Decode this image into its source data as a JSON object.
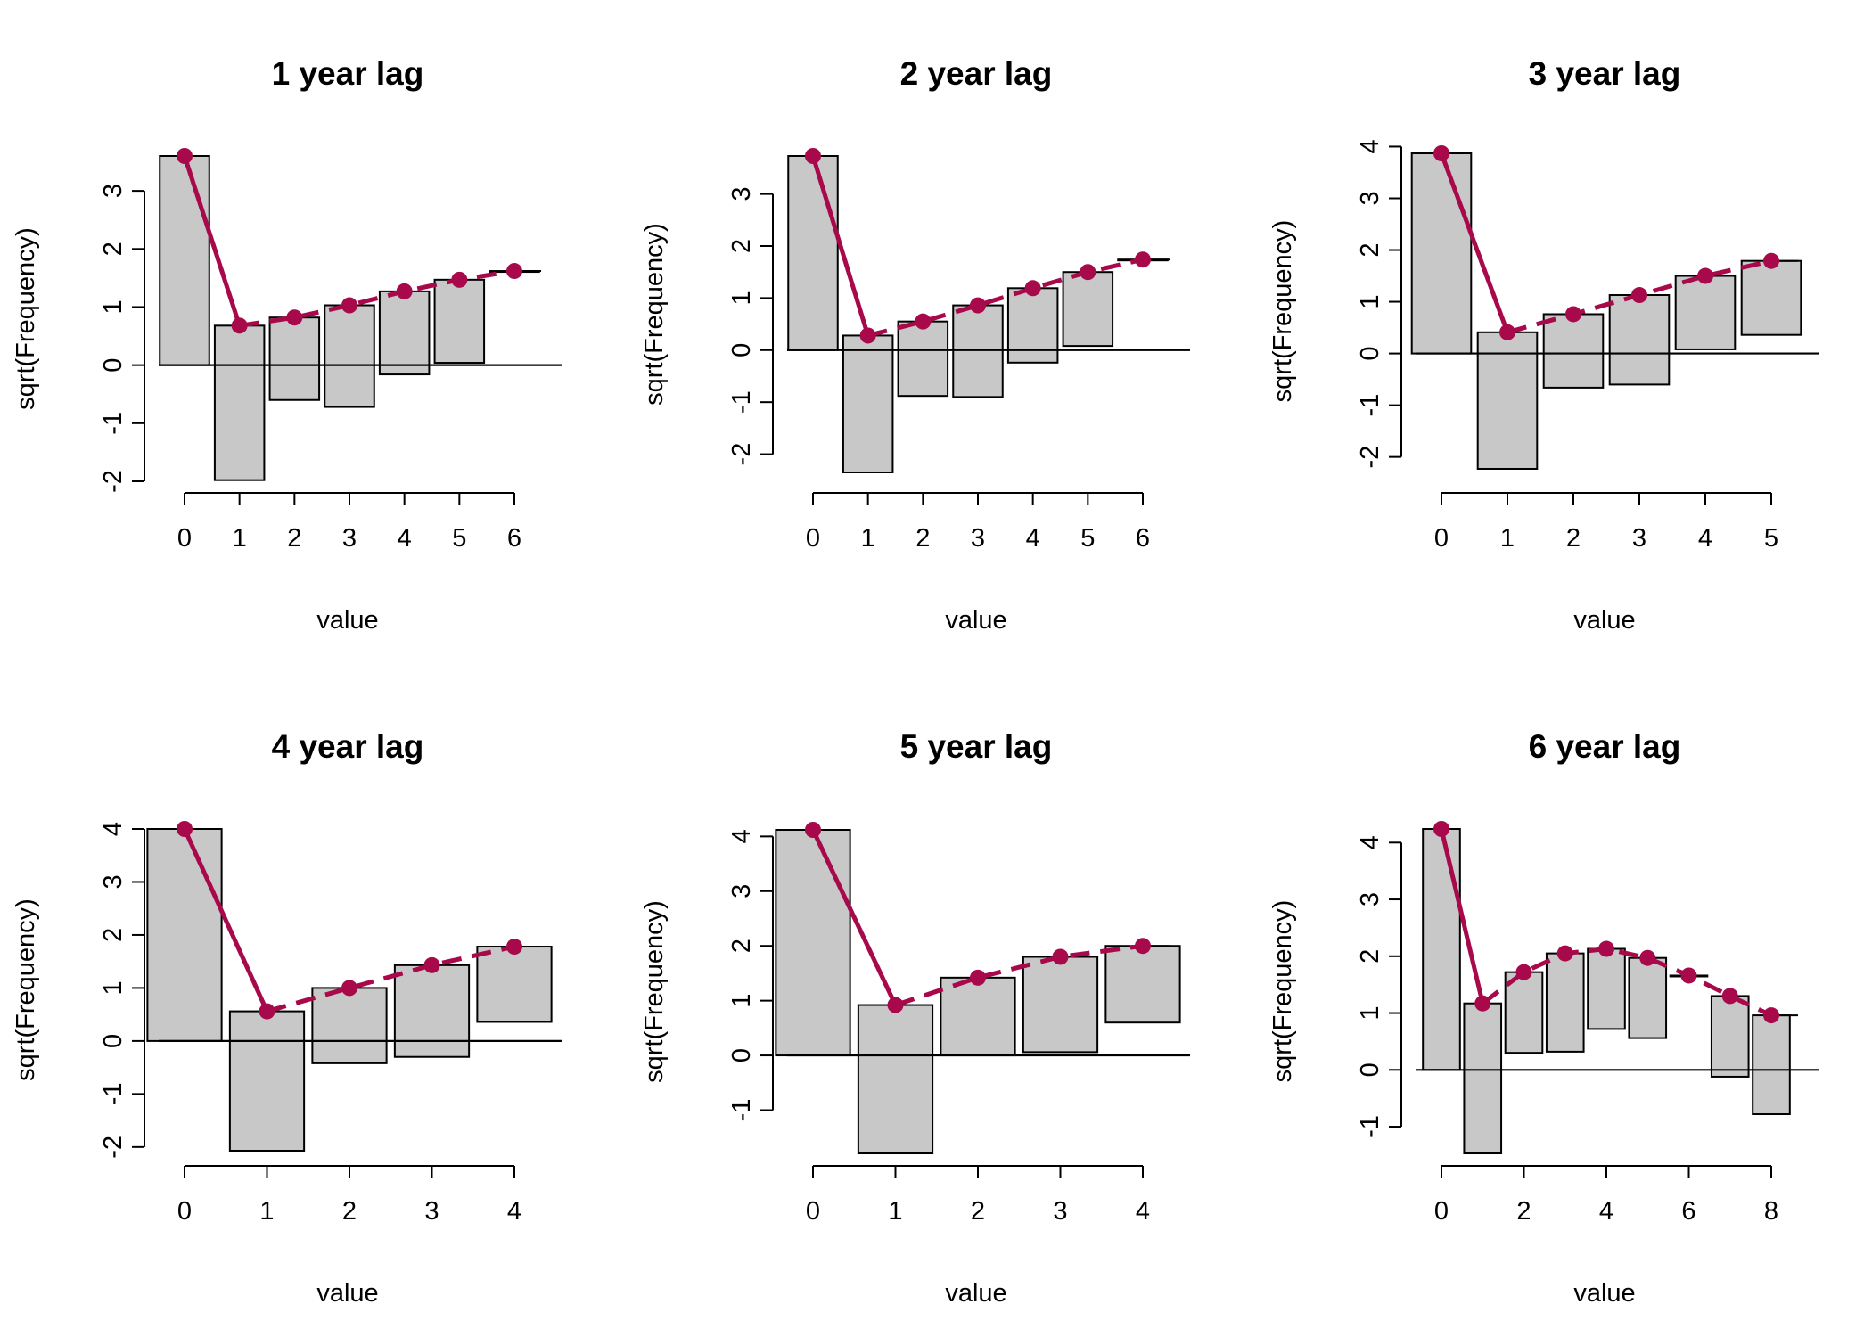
{
  "colors": {
    "bar_fill": "#c8c8c8",
    "bar_stroke": "#000000",
    "line": "#a8094a",
    "axis": "#000000"
  },
  "chart_data": [
    {
      "type": "bar",
      "title": "1 year lag",
      "xlabel": "value",
      "ylabel": "sqrt(Frequency)",
      "x": [
        0,
        1,
        2,
        3,
        4,
        5,
        6
      ],
      "xticks": [
        "0",
        "1",
        "2",
        "3",
        "4",
        "5",
        "6"
      ],
      "yticks": [
        "-2",
        "-1",
        "0",
        "1",
        "2",
        "3"
      ],
      "xlim": [
        -0.5,
        6.5
      ],
      "ylim": [
        -2.0,
        3.6
      ],
      "bars": [
        {
          "x": 0,
          "top": 3.6,
          "bottom": 0.0
        },
        {
          "x": 1,
          "top": 0.68,
          "bottom": -1.98
        },
        {
          "x": 2,
          "top": 0.82,
          "bottom": -0.6
        },
        {
          "x": 3,
          "top": 1.03,
          "bottom": -0.72
        },
        {
          "x": 4,
          "top": 1.27,
          "bottom": -0.16
        },
        {
          "x": 5,
          "top": 1.47,
          "bottom": 0.04
        },
        {
          "x": 6,
          "top": 1.62,
          "bottom": 1.62
        }
      ],
      "fitted": [
        3.6,
        0.68,
        0.82,
        1.03,
        1.27,
        1.47,
        1.62
      ]
    },
    {
      "type": "bar",
      "title": "2 year lag",
      "xlabel": "value",
      "ylabel": "sqrt(Frequency)",
      "x": [
        0,
        1,
        2,
        3,
        4,
        5,
        6
      ],
      "xticks": [
        "0",
        "1",
        "2",
        "3",
        "4",
        "5",
        "6"
      ],
      "yticks": [
        "-2",
        "-1",
        "0",
        "1",
        "2",
        "3"
      ],
      "xlim": [
        -0.5,
        6.5
      ],
      "ylim": [
        -2.35,
        3.73
      ],
      "bars": [
        {
          "x": 0,
          "top": 3.73,
          "bottom": 0.0
        },
        {
          "x": 1,
          "top": 0.28,
          "bottom": -2.35
        },
        {
          "x": 2,
          "top": 0.55,
          "bottom": -0.88
        },
        {
          "x": 3,
          "top": 0.86,
          "bottom": -0.9
        },
        {
          "x": 4,
          "top": 1.19,
          "bottom": -0.24
        },
        {
          "x": 5,
          "top": 1.5,
          "bottom": 0.08
        },
        {
          "x": 6,
          "top": 1.74,
          "bottom": 1.74
        }
      ],
      "fitted": [
        3.73,
        0.28,
        0.55,
        0.86,
        1.19,
        1.5,
        1.74
      ]
    },
    {
      "type": "bar",
      "title": "3 year lag",
      "xlabel": "value",
      "ylabel": "sqrt(Frequency)",
      "x": [
        0,
        1,
        2,
        3,
        4,
        5
      ],
      "xticks": [
        "0",
        "1",
        "2",
        "3",
        "4",
        "5"
      ],
      "yticks": [
        "-2",
        "-1",
        "0",
        "1",
        "2",
        "3",
        "4"
      ],
      "xlim": [
        -0.5,
        5.5
      ],
      "ylim": [
        -2.23,
        3.87
      ],
      "bars": [
        {
          "x": 0,
          "top": 3.87,
          "bottom": 0.0
        },
        {
          "x": 1,
          "top": 0.41,
          "bottom": -2.23
        },
        {
          "x": 2,
          "top": 0.76,
          "bottom": -0.66
        },
        {
          "x": 3,
          "top": 1.13,
          "bottom": -0.6
        },
        {
          "x": 4,
          "top": 1.5,
          "bottom": 0.08
        },
        {
          "x": 5,
          "top": 1.79,
          "bottom": 0.36
        }
      ],
      "fitted": [
        3.87,
        0.41,
        0.76,
        1.13,
        1.5,
        1.79
      ]
    },
    {
      "type": "bar",
      "title": "4 year lag",
      "xlabel": "value",
      "ylabel": "sqrt(Frequency)",
      "x": [
        0,
        1,
        2,
        3,
        4
      ],
      "xticks": [
        "0",
        "1",
        "2",
        "3",
        "4"
      ],
      "yticks": [
        "-2",
        "-1",
        "0",
        "1",
        "2",
        "3",
        "4"
      ],
      "xlim": [
        -0.5,
        4.5
      ],
      "ylim": [
        -2.07,
        4.0
      ],
      "bars": [
        {
          "x": 0,
          "top": 4.0,
          "bottom": 0.0
        },
        {
          "x": 1,
          "top": 0.56,
          "bottom": -2.07
        },
        {
          "x": 2,
          "top": 1.0,
          "bottom": -0.42
        },
        {
          "x": 3,
          "top": 1.43,
          "bottom": -0.3
        },
        {
          "x": 4,
          "top": 1.78,
          "bottom": 0.36
        }
      ],
      "fitted": [
        4.0,
        0.56,
        1.0,
        1.43,
        1.78
      ]
    },
    {
      "type": "bar",
      "title": "5 year lag",
      "xlabel": "value",
      "ylabel": "sqrt(Frequency)",
      "x": [
        0,
        1,
        2,
        3,
        4
      ],
      "xticks": [
        "0",
        "1",
        "2",
        "3",
        "4"
      ],
      "yticks": [
        "-1",
        "0",
        "1",
        "2",
        "3",
        "4"
      ],
      "xlim": [
        -0.5,
        4.5
      ],
      "ylim": [
        -1.79,
        4.12
      ],
      "bars": [
        {
          "x": 0,
          "top": 4.12,
          "bottom": 0.0
        },
        {
          "x": 1,
          "top": 0.92,
          "bottom": -1.79
        },
        {
          "x": 2,
          "top": 1.42,
          "bottom": 0.0
        },
        {
          "x": 3,
          "top": 1.8,
          "bottom": 0.06
        },
        {
          "x": 4,
          "top": 2.0,
          "bottom": 0.6
        }
      ],
      "fitted": [
        4.12,
        0.92,
        1.42,
        1.8,
        2.0
      ]
    },
    {
      "type": "bar",
      "title": "6 year lag",
      "xlabel": "value",
      "ylabel": "sqrt(Frequency)",
      "x": [
        0,
        1,
        2,
        3,
        4,
        5,
        6,
        7,
        8
      ],
      "xtick_values": [
        0,
        2,
        4,
        6,
        8
      ],
      "xticks": [
        "0",
        "2",
        "4",
        "6",
        "8"
      ],
      "yticks": [
        "-1",
        "0",
        "1",
        "2",
        "3",
        "4"
      ],
      "xlim": [
        -0.5,
        8.5
      ],
      "ylim": [
        -1.47,
        4.24
      ],
      "bars": [
        {
          "x": 0,
          "top": 4.24,
          "bottom": 0.0
        },
        {
          "x": 1,
          "top": 1.17,
          "bottom": -1.47
        },
        {
          "x": 2,
          "top": 1.72,
          "bottom": 0.3
        },
        {
          "x": 3,
          "top": 2.05,
          "bottom": 0.32
        },
        {
          "x": 4,
          "top": 2.13,
          "bottom": 0.72
        },
        {
          "x": 5,
          "top": 1.97,
          "bottom": 0.56
        },
        {
          "x": 6,
          "top": 1.66,
          "bottom": 1.66
        },
        {
          "x": 7,
          "top": 1.3,
          "bottom": -0.12
        },
        {
          "x": 8,
          "top": 0.96,
          "bottom": -0.78
        }
      ],
      "fitted": [
        4.24,
        1.17,
        1.72,
        2.05,
        2.13,
        1.97,
        1.66,
        1.3,
        0.96
      ]
    }
  ]
}
